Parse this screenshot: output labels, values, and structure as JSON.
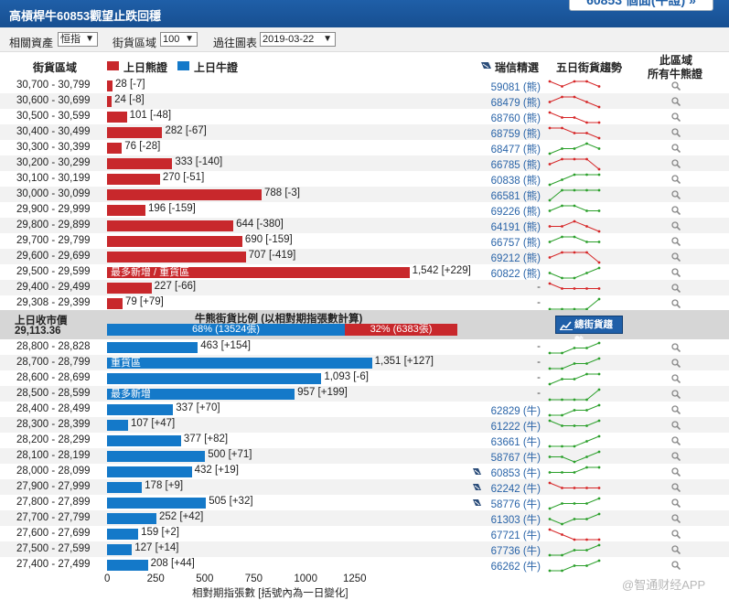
{
  "title": "高槓桿牛60853觀望止跌回穩",
  "header_button": "60853 個面(牛證) »",
  "controls": {
    "asset_label": "相關資產",
    "asset_value": "恒指",
    "range_label": "街貨區域",
    "range_value": "100",
    "date_label": "過往圖表",
    "date_value": "2019-03-22"
  },
  "headers": {
    "range": "街貨區域",
    "bear_legend": "上日熊證",
    "bull_legend": "上日牛證",
    "pick": "瑞信精選",
    "trend": "五日街貨趨勢",
    "region_l1": "此區域",
    "region_l2": "所有牛熊證"
  },
  "bear_rows": [
    {
      "range": "30,700 - 30,799",
      "value": 28,
      "label": "28 [-7]",
      "warrant": "59081 (熊)",
      "trend": [
        3,
        2,
        3,
        3,
        2
      ]
    },
    {
      "range": "30,600 - 30,699",
      "value": 24,
      "label": "24 [-8]",
      "warrant": "68479 (熊)",
      "trend": [
        2,
        3,
        3,
        2,
        1
      ]
    },
    {
      "range": "30,500 - 30,599",
      "value": 101,
      "label": "101 [-48]",
      "warrant": "68760 (熊)",
      "trend": [
        3,
        2,
        2,
        1,
        1
      ]
    },
    {
      "range": "30,400 - 30,499",
      "value": 282,
      "label": "282 [-67]",
      "warrant": "68759 (熊)",
      "trend": [
        3,
        3,
        2,
        2,
        1
      ]
    },
    {
      "range": "30,300 - 30,399",
      "value": 76,
      "label": "76 [-28]",
      "warrant": "68477 (熊)",
      "trend": [
        1,
        2,
        2,
        3,
        2
      ]
    },
    {
      "range": "30,200 - 30,299",
      "value": 333,
      "label": "333 [-140]",
      "warrant": "66785 (熊)",
      "trend": [
        2,
        3,
        3,
        3,
        1
      ]
    },
    {
      "range": "30,100 - 30,199",
      "value": 270,
      "label": "270 [-51]",
      "warrant": "60838 (熊)",
      "trend": [
        1,
        2,
        3,
        3,
        3
      ]
    },
    {
      "range": "30,000 - 30,099",
      "value": 788,
      "label": "788 [-3]",
      "warrant": "66581 (熊)",
      "trend": [
        1,
        3,
        3,
        3,
        3
      ]
    },
    {
      "range": "29,900 - 29,999",
      "value": 196,
      "label": "196 [-159]",
      "warrant": "69226 (熊)",
      "trend": [
        2,
        3,
        3,
        2,
        2
      ]
    },
    {
      "range": "29,800 - 29,899",
      "value": 644,
      "label": "644 [-380]",
      "warrant": "64191 (熊)",
      "trend": [
        2,
        2,
        3,
        2,
        1
      ]
    },
    {
      "range": "29,700 - 29,799",
      "value": 690,
      "label": "690 [-159]",
      "warrant": "66757 (熊)",
      "trend": [
        2,
        3,
        3,
        2,
        2
      ]
    },
    {
      "range": "29,600 - 29,699",
      "value": 707,
      "label": "707 [-419]",
      "warrant": "69212 (熊)",
      "trend": [
        2,
        3,
        3,
        3,
        1
      ]
    },
    {
      "range": "29,500 - 29,599",
      "value": 1542,
      "label": "1,542 [+229]",
      "inner": "最多新增 / 重貨區",
      "warrant": "60822 (熊)",
      "trend": [
        2,
        1,
        1,
        2,
        3
      ]
    },
    {
      "range": "29,400 - 29,499",
      "value": 227,
      "label": "227 [-66]",
      "warrant": "-",
      "trend": [
        3,
        2,
        2,
        2,
        2
      ]
    },
    {
      "range": "29,308 - 29,399",
      "value": 79,
      "label": "79 [+79]",
      "warrant": "-",
      "trend": [
        1,
        1,
        1,
        1,
        3
      ]
    }
  ],
  "separator": {
    "close_label": "上日收市價",
    "close_value": "29,113.36",
    "ratio_title": "牛熊街貨比例 (以相對期指張數計算)",
    "bull_pct": 68,
    "bull_text": "68% (13524張)",
    "bear_text": "32% (6383張)",
    "trend_button": "總街貨趨勢"
  },
  "bull_rows": [
    {
      "range": "28,800 - 28,828",
      "value": 463,
      "label": "463 [+154]",
      "warrant": "-",
      "trend": [
        1,
        1,
        2,
        2,
        3
      ]
    },
    {
      "range": "28,700 - 28,799",
      "value": 1351,
      "label": "1,351 [+127]",
      "inner": "重貨區",
      "warrant": "-",
      "trend": [
        1,
        1,
        2,
        2,
        3
      ]
    },
    {
      "range": "28,600 - 28,699",
      "value": 1093,
      "label": "1,093 [-6]",
      "warrant": "-",
      "trend": [
        1,
        2,
        2,
        3,
        3
      ]
    },
    {
      "range": "28,500 - 28,599",
      "value": 957,
      "label": "957 [+199]",
      "inner": "最多新增",
      "warrant": "-",
      "trend": [
        1,
        1,
        1,
        1,
        3
      ]
    },
    {
      "range": "28,400 - 28,499",
      "value": 337,
      "label": "337 [+70]",
      "warrant": "62829 (牛)",
      "trend": [
        1,
        1,
        2,
        2,
        3
      ]
    },
    {
      "range": "28,300 - 28,399",
      "value": 107,
      "label": "107 [+47]",
      "warrant": "61222 (牛)",
      "trend": [
        3,
        2,
        2,
        2,
        3
      ]
    },
    {
      "range": "28,200 - 28,299",
      "value": 377,
      "label": "377 [+82]",
      "warrant": "63661 (牛)",
      "trend": [
        1,
        1,
        1,
        2,
        3
      ]
    },
    {
      "range": "28,100 - 28,199",
      "value": 500,
      "label": "500 [+71]",
      "warrant": "58767 (牛)",
      "trend": [
        2,
        2,
        1,
        2,
        3
      ]
    },
    {
      "range": "28,000 - 28,099",
      "value": 432,
      "label": "432 [+19]",
      "warrant": "60853 (牛)",
      "cb": true,
      "trend": [
        2,
        2,
        2,
        3,
        3
      ]
    },
    {
      "range": "27,900 - 27,999",
      "value": 178,
      "label": "178 [+9]",
      "warrant": "62242 (牛)",
      "cb": true,
      "trend": [
        3,
        2,
        2,
        2,
        2
      ]
    },
    {
      "range": "27,800 - 27,899",
      "value": 505,
      "label": "505 [+32]",
      "warrant": "58776 (牛)",
      "cb": true,
      "trend": [
        1,
        2,
        2,
        2,
        3
      ]
    },
    {
      "range": "27,700 - 27,799",
      "value": 252,
      "label": "252 [+42]",
      "warrant": "61303 (牛)",
      "trend": [
        2,
        1,
        2,
        2,
        3
      ]
    },
    {
      "range": "27,600 - 27,699",
      "value": 159,
      "label": "159 [+2]",
      "warrant": "67721 (牛)",
      "trend": [
        3,
        2,
        1,
        1,
        1
      ]
    },
    {
      "range": "27,500 - 27,599",
      "value": 127,
      "label": "127 [+14]",
      "warrant": "67736 (牛)",
      "trend": [
        1,
        1,
        2,
        2,
        3
      ]
    },
    {
      "range": "27,400 - 27,499",
      "value": 208,
      "label": "208 [+44]",
      "warrant": "66262 (牛)",
      "trend": [
        1,
        1,
        2,
        2,
        3
      ]
    }
  ],
  "axis": {
    "ticks": [
      "0",
      "250",
      "500",
      "750",
      "1000",
      "1250"
    ],
    "title": "相對期指張數 [括號內為一日變化]"
  },
  "watermark": "@智通财经APP",
  "colors": {
    "bear": "#c8282c",
    "bull": "#1479c9",
    "spark_up": "#2ca02c",
    "spark_down": "#d62728"
  }
}
